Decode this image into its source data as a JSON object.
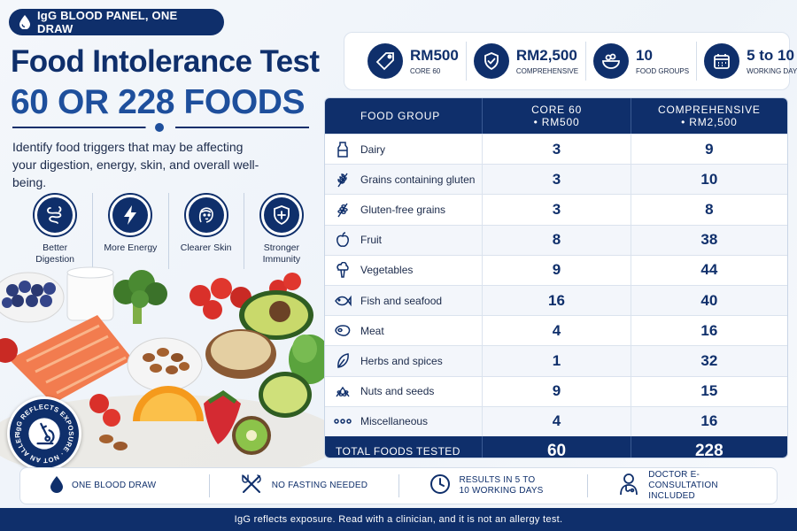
{
  "badge": {
    "text": "IgG BLOOD PANEL, ONE DRAW",
    "icon": "blood-drop-icon"
  },
  "title": {
    "line1": "Food Intolerance Test",
    "line2": "60 OR 228 FOODS"
  },
  "subtitle": "Identify food triggers that may be affecting your digestion, energy, skin, and overall well-being.",
  "benefits": [
    {
      "label": "Better Digestion",
      "icon": "intestine-icon"
    },
    {
      "label": "More Energy",
      "icon": "lightning-icon"
    },
    {
      "label": "Clearer Skin",
      "icon": "face-icon"
    },
    {
      "label": "Stronger Immunity",
      "icon": "shield-plus-icon"
    }
  ],
  "seal": {
    "text": "IgG REFLECTS EXPOSURE · NOT AN ALLERGY TEST",
    "icon": "microscope-icon"
  },
  "stats": [
    {
      "value": "RM500",
      "label": "CORE 60",
      "icon": "price-tag-icon"
    },
    {
      "value": "RM2,500",
      "label": "COMPREHENSIVE",
      "icon": "shield-check-icon"
    },
    {
      "value": "10",
      "label": "FOOD GROUPS",
      "icon": "salad-bowl-icon"
    },
    {
      "value": "5 to 10",
      "label": "WORKING DAYS",
      "icon": "calendar-icon"
    }
  ],
  "table": {
    "headers": {
      "group": "FOOD GROUP",
      "core_line1": "CORE 60",
      "core_line2": "• RM500",
      "comp_line1": "COMPREHENSIVE",
      "comp_line2": "• RM2,500"
    },
    "rows": [
      {
        "group": "Dairy",
        "core": "3",
        "comp": "9",
        "icon": "milk-bottle-icon"
      },
      {
        "group": "Grains containing gluten",
        "core": "3",
        "comp": "10",
        "icon": "wheat-icon"
      },
      {
        "group": "Gluten-free grains",
        "core": "3",
        "comp": "8",
        "icon": "grain-icon"
      },
      {
        "group": "Fruit",
        "core": "8",
        "comp": "38",
        "icon": "apple-icon"
      },
      {
        "group": "Vegetables",
        "core": "9",
        "comp": "44",
        "icon": "broccoli-icon"
      },
      {
        "group": "Fish and seafood",
        "core": "16",
        "comp": "40",
        "icon": "fish-icon"
      },
      {
        "group": "Meat",
        "core": "4",
        "comp": "16",
        "icon": "steak-icon"
      },
      {
        "group": "Herbs and spices",
        "core": "1",
        "comp": "32",
        "icon": "leaf-icon"
      },
      {
        "group": "Nuts and seeds",
        "core": "9",
        "comp": "15",
        "icon": "seeds-icon"
      },
      {
        "group": "Miscellaneous",
        "core": "4",
        "comp": "16",
        "icon": "dots-icon"
      }
    ],
    "total": {
      "label": "TOTAL FOODS TESTED",
      "core": "60",
      "comp": "228"
    }
  },
  "features": [
    {
      "text": "ONE BLOOD DRAW",
      "icon": "blood-drop-icon"
    },
    {
      "text": "NO FASTING NEEDED",
      "icon": "utensils-icon"
    },
    {
      "text": "RESULTS IN 5 TO 10 WORKING DAYS",
      "icon": "clock-icon"
    },
    {
      "text": "DOCTOR E-CONSULTATION INCLUDED",
      "icon": "doctor-icon"
    }
  ],
  "footer": "IgG reflects exposure. Read with a clinician, and it is not an allergy test.",
  "colors": {
    "navy": "#0f2f6b",
    "blue": "#1e4f9c",
    "background": "#f4f7fb"
  }
}
